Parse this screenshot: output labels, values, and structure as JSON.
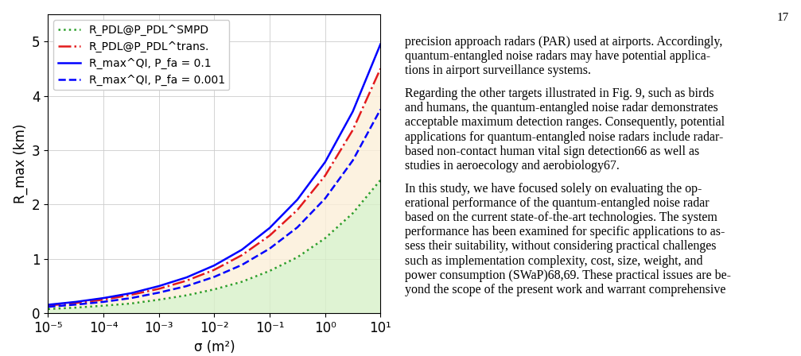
{
  "chart_data": {
    "type": "line",
    "x_label": "σ (m²)",
    "y_label": "R_max (km)",
    "log": "x",
    "grid": true,
    "legend": "upper left",
    "x": [
      1e-05,
      3.16e-05,
      0.0001,
      0.000316,
      0.001,
      0.00316,
      0.01,
      0.0316,
      0.1,
      0.316,
      1,
      3.16,
      10
    ],
    "xlim": [
      1e-05,
      10
    ],
    "xticks": [
      {
        "value": 1e-05,
        "label": "10⁻⁵"
      },
      {
        "value": 0.0001,
        "label": "10⁻⁴"
      },
      {
        "value": 0.001,
        "label": "10⁻³"
      },
      {
        "value": 0.01,
        "label": "10⁻²"
      },
      {
        "value": 0.1,
        "label": "10⁻¹"
      },
      {
        "value": 1,
        "label": "10⁰"
      },
      {
        "value": 10,
        "label": "10¹"
      }
    ],
    "ylim": [
      0,
      5.5
    ],
    "yticks": [
      0,
      1,
      2,
      3,
      4,
      5
    ],
    "series": [
      {
        "name": "R_PDL@P_PDL^SMPD",
        "color": "#2ca02c",
        "line_style": "dotted",
        "values": [
          0.078,
          0.104,
          0.14,
          0.18,
          0.25,
          0.33,
          0.44,
          0.58,
          0.78,
          1.03,
          1.38,
          1.84,
          2.45
        ]
      },
      {
        "name": "R_PDL@P_PDL^trans.",
        "color": "#e31a1c",
        "line_style": "dashdot",
        "values": [
          0.143,
          0.19,
          0.25,
          0.34,
          0.45,
          0.6,
          0.8,
          1.07,
          1.43,
          1.9,
          2.53,
          3.37,
          4.5
        ]
      },
      {
        "name": "R_max^QI, P_fa = 0.1",
        "color": "#0000ff",
        "line_style": "solid",
        "values": [
          0.157,
          0.21,
          0.28,
          0.37,
          0.5,
          0.66,
          0.88,
          1.17,
          1.57,
          2.09,
          2.78,
          3.71,
          4.95
        ]
      },
      {
        "name": "R_max^QI, P_fa = 0.001",
        "color": "#0000ff",
        "line_style": "dashed",
        "values": [
          0.119,
          0.16,
          0.21,
          0.28,
          0.38,
          0.5,
          0.67,
          0.89,
          1.19,
          1.58,
          2.11,
          2.81,
          3.75
        ]
      }
    ]
  },
  "page": {
    "number": "17",
    "paragraphs": [
      [
        "precision approach radars (PAR) used at airports. Accordingly,",
        "quantum-entangled noise radars may have potential applica-",
        "tions in airport surveillance systems."
      ],
      [
        "Regarding the other targets illustrated in Fig. 9, such as birds",
        "and humans, the quantum-entangled noise radar demonstrates",
        "acceptable maximum detection ranges. Consequently, potential",
        "applications for quantum-entangled noise radars include radar-",
        "based non-contact human vital sign detection66 as well as",
        "studies in aeroecology and aerobiology67."
      ],
      [
        "In this study, we have focused solely on evaluating the op-",
        "erational performance of the quantum-entangled noise radar",
        "based on the current state-of-the-art technologies. The system",
        "performance has been examined for specific applications to as-",
        "sess their suitability, without considering practical challenges",
        "such as implementation complexity, cost, size, weight, and",
        "power consumption (SWaP)68,69. These practical issues are be-",
        "yond the scope of the present work and warrant comprehensive"
      ]
    ]
  }
}
